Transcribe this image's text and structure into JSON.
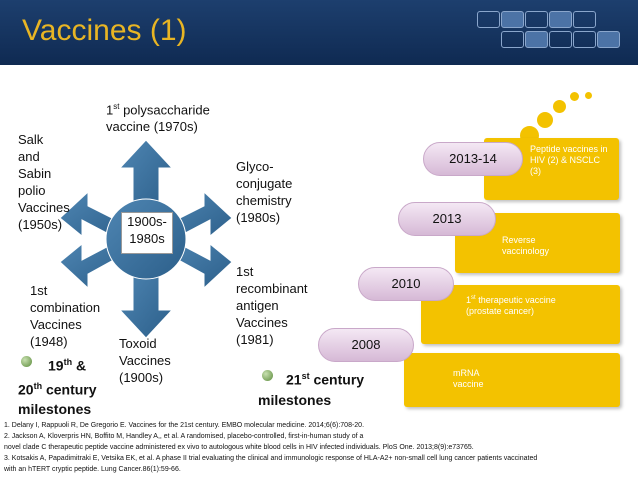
{
  "title": "Vaccines (1)",
  "diagram": {
    "center": "1900s-\n1980s",
    "salk": "Salk\nand\nSabin\npolio\nVaccines\n(1950s)",
    "polysaccharide_sup": "st",
    "polysaccharide_pre": "1",
    "polysaccharide_rest": " polysaccharide",
    "polysaccharide_line2": "vaccine (1970s)",
    "glyco": "Glyco-\nconjugate\nchemistry\n(1980s)",
    "recombinant": "1st\nrecombinant\nantigen\nVaccines\n(1981)",
    "toxoid": "Toxoid\nVaccines\n(1900s)",
    "combination": "1st\ncombination\nVaccines\n(1948)"
  },
  "left_caption": {
    "a": "19",
    "a_sup": "th",
    "b": " &",
    "c": "20",
    "c_sup": "th",
    "d": " century",
    "e": "milestones"
  },
  "right_caption": {
    "a": "21",
    "a_sup": "st",
    "b": " century",
    "c": "milestones"
  },
  "timeline": [
    {
      "year": "2013-14",
      "text": "Peptide vaccines in HIV (2) & NSCLC (3)"
    },
    {
      "year": "2013",
      "text": "Reverse vaccinology"
    },
    {
      "year": "2010",
      "text_pre": "1",
      "text_sup": "st",
      "text_rest": " therapeutic vaccine (prostate cancer)"
    },
    {
      "year": "2008",
      "text": "mRNA vaccine"
    }
  ],
  "references": [
    "1. Delany I, Rappuoli R, De Gregorio E. Vaccines for the 21st century. EMBO molecular medicine. 2014;6(6):708-20.",
    "2. Jackson A, Kloverpris HN, Boffito M, Handley A,, et al. A randomised, placebo-controlled, first-in-human study of a",
    "novel clade C therapeutic peptide vaccine administered ex vivo to autologous white blood cells in HIV infected individuals. PloS One. 2013;8(9):e73765.",
    "3. Kotsakis A, Papadimitraki E, Vetsika EK, et al. A phase II trial evaluating the clinical and immunologic response of HLA-A2+ non-small cell lung cancer patients vaccinated",
    "with an hTERT cryptic peptide. Lung Cancer.86(1):59-66."
  ],
  "colors": {
    "header": "#0f2a52",
    "title": "#e8b524",
    "arrow": "#2c5f8a",
    "gold": "#f3c200",
    "pill": "#d6b9d6"
  }
}
